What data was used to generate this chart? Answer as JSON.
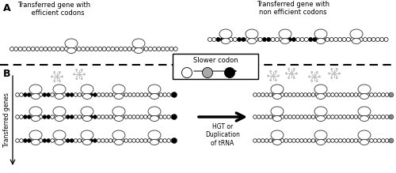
{
  "fig_width": 5.0,
  "fig_height": 2.19,
  "dpi": 100,
  "bg_color": "#ffffff",
  "label_A": "A",
  "label_B": "B",
  "title_left": "Transferred gene with\n    efficient codons",
  "title_right": "Transferred gene with\nnon efficient codons",
  "box_label": "Slower codon",
  "arrow_label": "HGT or\nDuplication\nof tRNA",
  "ylabel_B": "Transferred genes",
  "text_color": "#000000",
  "edge_color": "#333333",
  "star_color": "#bbbbbb",
  "gray_color": "#888888"
}
